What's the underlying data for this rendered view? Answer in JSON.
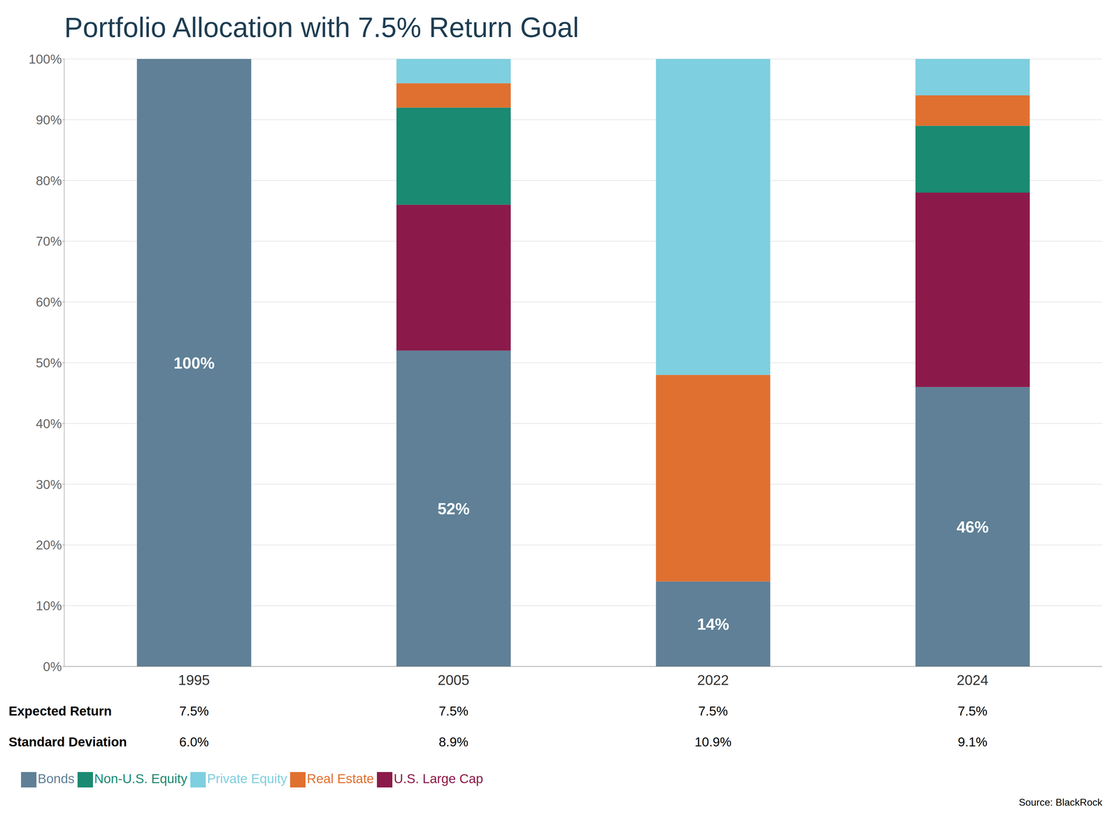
{
  "chart_data": {
    "type": "bar",
    "title": "Portfolio Allocation with 7.5% Return Goal",
    "categories": [
      "1995",
      "2005",
      "2022",
      "2024"
    ],
    "stacked": true,
    "series": [
      {
        "name": "Bonds",
        "color": "#5f8096",
        "values": [
          100,
          52,
          14,
          46
        ],
        "data_labels": true,
        "value_labels": [
          "100%",
          "52%",
          "14%",
          "46%"
        ]
      },
      {
        "name": "U.S. Large Cap",
        "color": "#8b1a4a",
        "values": [
          0,
          24,
          0,
          32
        ]
      },
      {
        "name": "Non-U.S. Equity",
        "color": "#1a8a72",
        "values": [
          0,
          16,
          0,
          11
        ]
      },
      {
        "name": "Real Estate",
        "color": "#e07030",
        "values": [
          0,
          4,
          34,
          5
        ]
      },
      {
        "name": "Private Equity",
        "color": "#7ecfdf",
        "values": [
          0,
          4,
          52,
          6
        ]
      }
    ],
    "ylim": [
      0,
      100
    ],
    "yticks": [
      {
        "value": 0,
        "label": "0%"
      },
      {
        "value": 10,
        "label": "10%"
      },
      {
        "value": 20,
        "label": "20%"
      },
      {
        "value": 30,
        "label": "30%"
      },
      {
        "value": 40,
        "label": "40%"
      },
      {
        "value": 50,
        "label": "50%"
      },
      {
        "value": 60,
        "label": "60%"
      },
      {
        "value": 70,
        "label": "70%"
      },
      {
        "value": 80,
        "label": "80%"
      },
      {
        "value": 90,
        "label": "90%"
      },
      {
        "value": 100,
        "label": "100%"
      }
    ],
    "grid": true,
    "legend": "bottom",
    "annotations": [
      {
        "label": "Expected Return",
        "values": [
          "7.5%",
          "7.5%",
          "7.5%",
          "7.5%"
        ]
      },
      {
        "label": "Standard Deviation",
        "values": [
          "6.0%",
          "8.9%",
          "10.9%",
          "9.1%"
        ]
      }
    ],
    "source": "Source: BlackRock"
  }
}
